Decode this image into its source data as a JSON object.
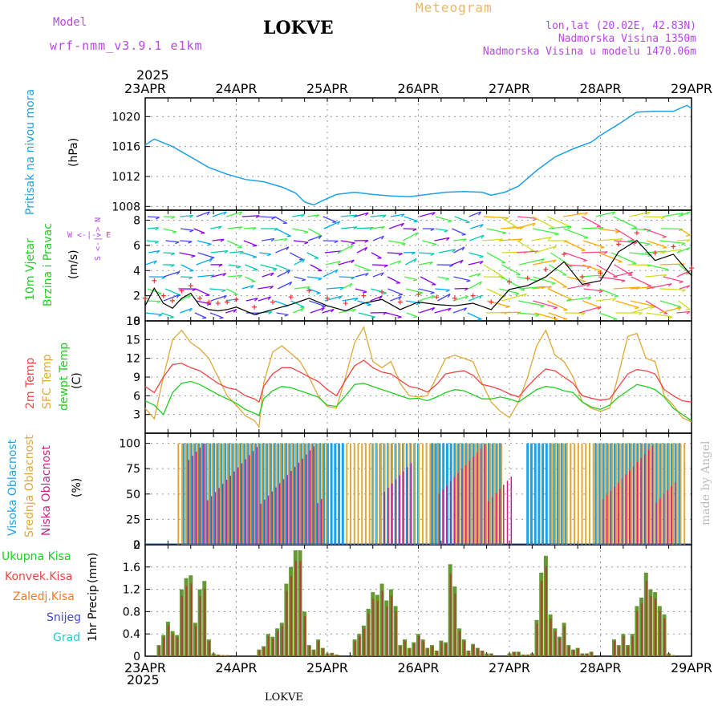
{
  "header": {
    "model_label": "Model",
    "model_name": "wrf-nmm_v3.9.1 e1km",
    "station": "LOKVE",
    "meteogram": "Meteogram",
    "lonlat": "lon,lat (20.02E, 42.83N)",
    "elevation": "Nadmorska Visina 1350m",
    "model_elevation": "Nadmorska Visina u modelu 1470.06m",
    "year_top": "2025",
    "year_bottom": "2025",
    "footer_station": "LOKVE",
    "credit": "made by Angel"
  },
  "colors": {
    "pressure": "#1ea0e6",
    "wind_label": "#22cc22",
    "temp2m": "#ee4444",
    "sfc": "#e0a838",
    "dewpt": "#22cc22",
    "high_cloud": "#1ea0e6",
    "mid_cloud": "#e0a838",
    "low_cloud": "#cc2288",
    "total_precip": "#44bb44",
    "conv_precip": "#ee4444",
    "frz_precip": "#ff7722",
    "snow": "#4444dd",
    "hail": "#22cccc",
    "purple": "#bb44ee"
  },
  "date_ticks": [
    "23APR",
    "24APR",
    "25APR",
    "26APR",
    "27APR",
    "28APR",
    "29APR"
  ],
  "panels": {
    "pressure": {
      "label": "Pritisak na nivou mora",
      "unit": "(hPa)",
      "ticks": [
        "1008",
        "1012",
        "1016",
        "1020"
      ]
    },
    "wind": {
      "label1": "10m Vjetar",
      "label2": "Brzina i Pravac",
      "unit": "(m/s)",
      "ticks": [
        "0",
        "2",
        "4",
        "6",
        "8"
      ],
      "compass": "W <-|-> E",
      "compass_v": "S <-|-> N"
    },
    "temp": {
      "label1": "2m Temp",
      "label2": "SFC Temp",
      "label3": "dewpt Temp",
      "unit": "(C)",
      "ticks": [
        "3",
        "6",
        "9",
        "12",
        "15",
        "18"
      ]
    },
    "cloud": {
      "label1": "Visoka Oblacnost",
      "label2": "Srednja Oblacnost",
      "label3": "Niska Oblacnost",
      "unit": "(%)",
      "ticks": [
        "0",
        "25",
        "50",
        "75",
        "100"
      ]
    },
    "precip": {
      "label": "1hr Precip",
      "unit": "(mm)",
      "ticks": [
        "0",
        "0.4",
        "0.8",
        "1.2",
        "1.6",
        "2"
      ],
      "legend": [
        "Ukupna Kisa",
        "Konvek.Kisa",
        "Zaledj.Kisa",
        "Snijeg",
        "Grad"
      ]
    }
  },
  "chart_data": [
    {
      "type": "line",
      "title": "Pritisak na nivou mora",
      "ylabel": "(hPa)",
      "ylim": [
        1008,
        1022.5
      ],
      "x_unit": "days since 23APR 00UTC",
      "series": [
        {
          "name": "Pritisak na nivou mora",
          "x": [
            0,
            0.1,
            0.3,
            0.5,
            0.7,
            0.9,
            1.1,
            1.3,
            1.5,
            1.65,
            1.75,
            1.85,
            1.95,
            2.1,
            2.3,
            2.5,
            2.7,
            2.9,
            3.1,
            3.3,
            3.5,
            3.7,
            3.8,
            3.95,
            4.1,
            4.3,
            4.5,
            4.7,
            4.9,
            5.0,
            5.2,
            5.4,
            5.6,
            5.8,
            5.95,
            6.0
          ],
          "y": [
            1016.2,
            1017.0,
            1016.0,
            1014.6,
            1013.2,
            1012.3,
            1011.6,
            1011.3,
            1010.6,
            1009.8,
            1008.6,
            1008.2,
            1008.8,
            1009.6,
            1009.9,
            1009.6,
            1009.4,
            1009.3,
            1009.6,
            1009.9,
            1010.0,
            1009.9,
            1009.5,
            1009.9,
            1010.7,
            1012.8,
            1014.6,
            1015.7,
            1016.6,
            1017.5,
            1019.0,
            1020.6,
            1020.7,
            1020.7,
            1021.5,
            1021.1
          ]
        }
      ]
    },
    {
      "type": "line",
      "title": "10m Vjetar Brzina i Pravac",
      "ylabel": "(m/s)",
      "ylim": [
        0,
        8.8
      ],
      "series": [
        {
          "name": "10m Vjetar",
          "x": [
            0,
            0.1,
            0.2,
            0.3,
            0.4,
            0.5,
            0.6,
            0.7,
            0.8,
            0.9,
            1.0,
            1.2,
            1.4,
            1.6,
            1.8,
            2.0,
            2.2,
            2.4,
            2.6,
            2.8,
            3.0,
            3.2,
            3.4,
            3.6,
            3.8,
            4.0,
            4.2,
            4.4,
            4.6,
            4.8,
            5.0,
            5.2,
            5.4,
            5.6,
            5.8,
            6.0
          ],
          "y": [
            1.2,
            2.6,
            1.4,
            1.0,
            1.8,
            2.2,
            1.2,
            0.9,
            0.8,
            0.9,
            1.1,
            0.5,
            0.9,
            1.3,
            1.8,
            1.2,
            0.8,
            1.4,
            1.7,
            0.9,
            1.5,
            1.3,
            1.2,
            1.4,
            0.9,
            2.5,
            2.8,
            3.5,
            4.7,
            2.9,
            3.2,
            5.5,
            6.4,
            4.8,
            5.3,
            3.6
          ]
        }
      ]
    },
    {
      "type": "line",
      "title": "2m Temp, SFC Temp, dewpt Temp",
      "ylabel": "(C)",
      "ylim": [
        0,
        18
      ],
      "x": [
        0,
        0.1,
        0.2,
        0.3,
        0.4,
        0.5,
        0.6,
        0.7,
        0.8,
        0.9,
        1.0,
        1.1,
        1.2,
        1.25,
        1.3,
        1.4,
        1.5,
        1.6,
        1.7,
        1.8,
        1.9,
        2.0,
        2.1,
        2.2,
        2.3,
        2.4,
        2.5,
        2.6,
        2.7,
        2.8,
        2.9,
        3.0,
        3.1,
        3.2,
        3.3,
        3.4,
        3.5,
        3.6,
        3.7,
        3.8,
        3.9,
        4.0,
        4.1,
        4.2,
        4.3,
        4.4,
        4.5,
        4.6,
        4.7,
        4.8,
        4.9,
        5.0,
        5.1,
        5.2,
        5.3,
        5.4,
        5.5,
        5.6,
        5.7,
        5.8,
        5.9,
        6.0
      ],
      "series": [
        {
          "name": "2m Temp",
          "y": [
            7.5,
            6.5,
            9.0,
            11.0,
            11.2,
            10.5,
            10.0,
            9.0,
            8.0,
            7.3,
            7.0,
            6.0,
            5.5,
            5.0,
            7.5,
            9.5,
            10.5,
            10.5,
            9.8,
            9.0,
            8.3,
            7.0,
            6.0,
            8.5,
            10.8,
            11.7,
            10.5,
            9.8,
            9.5,
            8.5,
            7.5,
            7.2,
            6.6,
            7.8,
            9.5,
            9.8,
            10.0,
            9.3,
            7.8,
            7.5,
            7.0,
            6.3,
            5.8,
            7.5,
            9.0,
            10.3,
            10.0,
            9.0,
            8.0,
            6.0,
            5.6,
            5.3,
            5.5,
            7.5,
            9.5,
            10.2,
            10.0,
            9.5,
            7.0,
            6.0,
            5.2,
            5.0
          ]
        },
        {
          "name": "SFC Temp",
          "y": [
            4.0,
            2.3,
            9.0,
            15.0,
            16.5,
            14.5,
            13.5,
            12.0,
            9.0,
            6.0,
            4.5,
            2.8,
            2.0,
            1.0,
            8.0,
            13.0,
            14.0,
            12.8,
            11.5,
            9.0,
            6.0,
            4.3,
            4.0,
            9.0,
            14.5,
            17.0,
            11.5,
            10.5,
            11.5,
            8.0,
            6.0,
            5.8,
            6.0,
            9.0,
            12.0,
            12.5,
            12.0,
            11.5,
            8.0,
            5.0,
            3.5,
            2.5,
            5.0,
            9.0,
            14.0,
            16.5,
            12.5,
            11.5,
            9.0,
            5.0,
            4.0,
            3.5,
            4.0,
            9.5,
            15.5,
            16.0,
            12.0,
            11.5,
            6.0,
            4.5,
            2.5,
            1.8
          ]
        },
        {
          "name": "dewpt Temp",
          "y": [
            5.2,
            4.5,
            3.0,
            6.5,
            8.0,
            8.3,
            7.8,
            7.0,
            6.2,
            5.5,
            4.8,
            3.8,
            3.2,
            2.8,
            5.5,
            6.8,
            7.5,
            7.3,
            6.8,
            6.3,
            5.8,
            4.5,
            4.3,
            6.0,
            7.8,
            8.0,
            7.5,
            7.0,
            6.5,
            6.0,
            5.5,
            5.6,
            5.2,
            5.8,
            6.5,
            7.0,
            6.8,
            6.2,
            5.5,
            5.5,
            5.8,
            5.5,
            5.0,
            6.0,
            7.0,
            7.5,
            7.3,
            6.8,
            6.5,
            5.0,
            4.2,
            3.8,
            4.5,
            5.8,
            6.8,
            7.8,
            7.5,
            7.0,
            5.8,
            4.0,
            3.0,
            2.0
          ]
        }
      ]
    },
    {
      "type": "bar",
      "title": "Visoka, Srednja, Niska Oblacnost",
      "ylabel": "(%)",
      "ylim": [
        0,
        100
      ],
      "note": "bars at ~100% except listed gaps",
      "series": [
        {
          "name": "Visoka Oblacnost",
          "covered_days": [
            [
              0.42,
              2.2
            ],
            [
              2.5,
              3.0
            ],
            [
              3.15,
              3.9
            ],
            [
              4.2,
              4.65
            ],
            [
              4.95,
              5.9
            ]
          ],
          "value": 100
        },
        {
          "name": "Srednja Oblacnost",
          "covered_days": [
            [
              0.35,
              2.0
            ],
            [
              2.2,
              3.2
            ],
            [
              3.4,
              3.9
            ],
            [
              4.45,
              4.7
            ],
            [
              4.45,
              5.95
            ]
          ],
          "value": 100
        },
        {
          "name": "Niska Oblacnost",
          "covered_days": [
            [
              0.45,
              1.95
            ],
            [
              2.6,
              2.9
            ],
            [
              3.2,
              4.0
            ],
            [
              5.0,
              5.8
            ]
          ],
          "value": 90
        }
      ]
    },
    {
      "type": "bar",
      "title": "1hr Precip",
      "ylabel": "(mm)",
      "ylim": [
        0,
        2
      ],
      "series": [
        {
          "name": "Ukupna Kisa",
          "x": [
            0.15,
            0.2,
            0.25,
            0.3,
            0.35,
            0.4,
            0.45,
            0.5,
            0.55,
            0.6,
            0.65,
            0.7,
            0.75,
            0.8,
            0.85,
            0.9,
            1.25,
            1.3,
            1.35,
            1.4,
            1.45,
            1.5,
            1.55,
            1.6,
            1.65,
            1.7,
            1.75,
            1.8,
            1.85,
            1.9,
            1.95,
            2.0,
            2.05,
            2.1,
            2.3,
            2.35,
            2.4,
            2.45,
            2.5,
            2.55,
            2.6,
            2.65,
            2.7,
            2.75,
            2.8,
            2.85,
            2.9,
            2.95,
            3.0,
            3.05,
            3.1,
            3.15,
            3.2,
            3.25,
            3.3,
            3.35,
            3.4,
            3.45,
            3.5,
            3.55,
            3.6,
            3.65,
            3.7,
            3.75,
            3.8,
            4.0,
            4.05,
            4.1,
            4.15,
            4.2,
            4.25,
            4.3,
            4.35,
            4.4,
            4.45,
            4.5,
            4.55,
            4.6,
            4.65,
            4.7,
            4.75,
            4.8,
            4.85,
            4.9,
            5.15,
            5.2,
            5.25,
            5.3,
            5.35,
            5.4,
            5.45,
            5.5,
            5.55,
            5.6,
            5.65,
            5.7,
            5.75,
            5.8
          ],
          "y": [
            0.2,
            0.38,
            0.62,
            0.45,
            0.38,
            1.2,
            1.4,
            1.45,
            0.6,
            1.2,
            1.35,
            0.3,
            0.05,
            0.03,
            0.02,
            0.02,
            0.12,
            0.18,
            0.4,
            0.35,
            0.5,
            0.6,
            1.3,
            1.6,
            1.9,
            1.9,
            0.8,
            0.2,
            0.12,
            0.3,
            0.15,
            0.05,
            0.06,
            0.03,
            0.3,
            0.4,
            0.55,
            0.85,
            1.15,
            1.1,
            1.3,
            1.0,
            1.2,
            0.9,
            0.2,
            0.3,
            0.15,
            0.25,
            0.4,
            0.3,
            0.15,
            0.2,
            0.1,
            0.28,
            0.25,
            1.65,
            1.25,
            0.5,
            0.3,
            0.1,
            0.22,
            0.15,
            0.1,
            0.05,
            0.05,
            0.05,
            0.08,
            0.08,
            0.03,
            0.03,
            0.05,
            0.65,
            1.5,
            1.8,
            0.75,
            0.5,
            0.35,
            0.6,
            0.2,
            0.12,
            0.15,
            0.05,
            0.05,
            0.08,
            0.3,
            0.2,
            0.4,
            0.2,
            0.4,
            0.9,
            1.05,
            1.5,
            1.2,
            1.15,
            0.9,
            0.75,
            0.05,
            0.02
          ]
        },
        {
          "name": "Konvek.Kisa",
          "note": "most bars largely convective"
        },
        {
          "name": "Zaledj.Kisa",
          "y_all": 0
        },
        {
          "name": "Snijeg",
          "y_all": 0
        },
        {
          "name": "Grad",
          "y_all": 0
        }
      ]
    }
  ]
}
